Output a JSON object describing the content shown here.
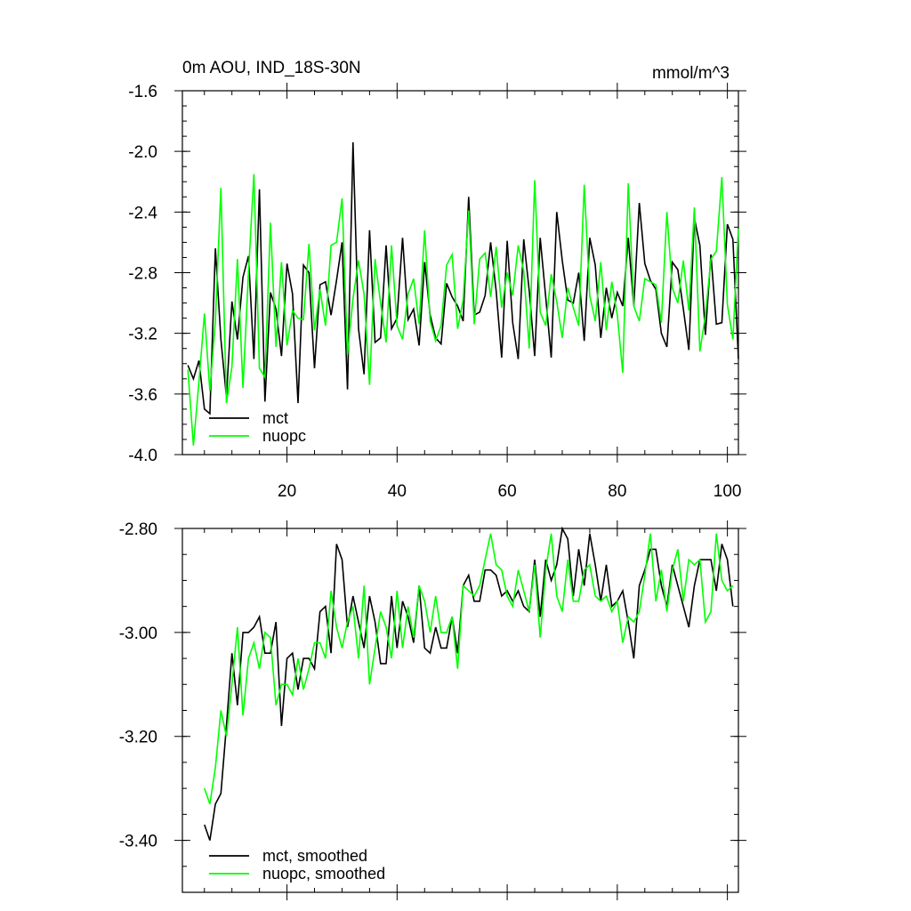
{
  "chart_data": [
    {
      "type": "line",
      "title": "0m AOU, IND_18S-30N",
      "units": "mmol/m^3",
      "xlim": [
        1,
        102
      ],
      "ylim": [
        -4.0,
        -1.6
      ],
      "x_ticks": [
        20,
        40,
        60,
        80,
        100
      ],
      "x_tick_labels": [
        "20",
        "40",
        "60",
        "80",
        "100"
      ],
      "y_ticks": [
        -4.0,
        -3.6,
        -3.2,
        -2.8,
        -2.4,
        -2.0,
        -1.6
      ],
      "y_tick_labels": [
        "-4.0",
        "-3.6",
        "-3.2",
        "-2.8",
        "-2.4",
        "-2.0",
        "-1.6"
      ],
      "series": [
        {
          "name": "mct",
          "color": "#000000",
          "x_start": 2,
          "values": [
            -3.41,
            -3.5,
            -3.38,
            -3.7,
            -3.73,
            -2.64,
            -3.24,
            -3.62,
            -2.99,
            -3.24,
            -2.83,
            -2.69,
            -3.37,
            -2.25,
            -3.65,
            -2.93,
            -3.04,
            -3.35,
            -2.74,
            -2.94,
            -3.66,
            -2.75,
            -2.8,
            -3.43,
            -2.88,
            -2.86,
            -3.08,
            -2.85,
            -2.6,
            -3.57,
            -1.94,
            -3.17,
            -3.47,
            -2.52,
            -3.26,
            -3.23,
            -2.62,
            -3.17,
            -3.1,
            -2.57,
            -3.11,
            -3.04,
            -3.28,
            -2.73,
            -3.08,
            -3.23,
            -3.27,
            -2.87,
            -2.96,
            -3.02,
            -3.12,
            -2.3,
            -3.08,
            -3.06,
            -2.95,
            -2.6,
            -2.92,
            -3.36,
            -2.59,
            -3.13,
            -3.37,
            -2.58,
            -2.92,
            -3.35,
            -2.57,
            -2.96,
            -3.36,
            -2.4,
            -2.72,
            -2.98,
            -3.0,
            -2.8,
            -3.25,
            -2.57,
            -2.75,
            -3.23,
            -2.9,
            -3.1,
            -2.93,
            -3.02,
            -2.57,
            -3.02,
            -2.34,
            -2.74,
            -2.85,
            -2.91,
            -3.2,
            -3.29,
            -2.73,
            -2.78,
            -3.04,
            -3.31,
            -2.44,
            -2.62,
            -3.21,
            -2.68,
            -3.14,
            -3.13,
            -2.48,
            -2.58,
            -3.37
          ]
        },
        {
          "name": "nuopc",
          "color": "#00ff00",
          "x_start": 2,
          "values": [
            -3.44,
            -3.94,
            -3.52,
            -3.07,
            -3.58,
            -3.12,
            -2.24,
            -3.66,
            -3.42,
            -2.71,
            -3.56,
            -2.8,
            -2.15,
            -3.43,
            -3.49,
            -2.47,
            -3.29,
            -2.73,
            -3.28,
            -3.05,
            -3.1,
            -3.11,
            -2.61,
            -3.18,
            -2.91,
            -3.15,
            -2.62,
            -2.6,
            -2.31,
            -3.34,
            -2.97,
            -2.72,
            -2.94,
            -3.54,
            -2.71,
            -3.0,
            -3.26,
            -2.62,
            -3.15,
            -3.24,
            -2.94,
            -2.84,
            -3.14,
            -2.52,
            -3.12,
            -3.25,
            -3.15,
            -2.75,
            -2.68,
            -3.17,
            -2.98,
            -2.39,
            -3.14,
            -2.71,
            -2.67,
            -2.96,
            -2.63,
            -3.03,
            -2.8,
            -2.95,
            -2.62,
            -2.79,
            -3.3,
            -2.19,
            -3.06,
            -3.15,
            -2.81,
            -2.99,
            -3.23,
            -2.9,
            -3.03,
            -3.15,
            -2.22,
            -2.95,
            -3.12,
            -2.73,
            -3.18,
            -2.86,
            -3.08,
            -3.46,
            -2.21,
            -3.02,
            -3.12,
            -2.84,
            -2.86,
            -2.88,
            -3.13,
            -2.4,
            -2.9,
            -3.0,
            -2.72,
            -3.05,
            -2.37,
            -3.32,
            -3.08,
            -2.71,
            -2.66,
            -2.17,
            -3.01,
            -3.24,
            -2.51
          ]
        }
      ]
    },
    {
      "type": "line",
      "title": "",
      "xlim": [
        1,
        102
      ],
      "ylim": [
        -3.5,
        -2.8
      ],
      "x_ticks": [
        20,
        40,
        60,
        80,
        100
      ],
      "y_ticks": [
        -3.4,
        -3.2,
        -3.0,
        -2.8
      ],
      "y_tick_labels": [
        "-3.40",
        "-3.20",
        "-3.00",
        "-2.80"
      ],
      "series": [
        {
          "name": "mct, smoothed",
          "color": "#000000",
          "x_start": 5,
          "values": [
            -3.37,
            -3.4,
            -3.33,
            -3.31,
            -3.18,
            -3.04,
            -3.14,
            -3.0,
            -3.0,
            -2.99,
            -2.97,
            -3.04,
            -3.04,
            -2.98,
            -3.18,
            -3.05,
            -3.04,
            -3.11,
            -3.05,
            -3.05,
            -3.07,
            -2.96,
            -2.95,
            -3.04,
            -2.83,
            -2.86,
            -2.99,
            -2.93,
            -2.98,
            -3.03,
            -2.93,
            -2.98,
            -3.06,
            -3.06,
            -2.93,
            -3.03,
            -2.94,
            -2.97,
            -3.02,
            -2.91,
            -3.03,
            -3.04,
            -2.99,
            -3.03,
            -3.03,
            -2.97,
            -3.04,
            -2.91,
            -2.89,
            -2.94,
            -2.94,
            -2.88,
            -2.88,
            -2.89,
            -2.93,
            -2.92,
            -2.94,
            -2.92,
            -2.95,
            -2.96,
            -2.86,
            -2.97,
            -2.86,
            -2.9,
            -2.87,
            -2.8,
            -2.82,
            -2.93,
            -2.84,
            -2.91,
            -2.81,
            -2.87,
            -2.94,
            -2.87,
            -2.95,
            -2.94,
            -2.92,
            -2.98,
            -3.05,
            -2.91,
            -2.88,
            -2.84,
            -2.84,
            -2.91,
            -2.95,
            -2.87,
            -2.91,
            -2.95,
            -2.99,
            -2.91,
            -2.86,
            -2.86,
            -2.86,
            -2.92,
            -2.83,
            -2.86,
            -2.95
          ]
        },
        {
          "name": "nuopc, smoothed",
          "color": "#00ff00",
          "x_start": 5,
          "values": [
            -3.3,
            -3.33,
            -3.26,
            -3.15,
            -3.2,
            -3.1,
            -2.99,
            -3.16,
            -3.05,
            -3.02,
            -3.07,
            -3.0,
            -3.01,
            -3.14,
            -3.1,
            -3.1,
            -3.12,
            -3.05,
            -3.11,
            -3.07,
            -3.02,
            -3.02,
            -3.05,
            -2.92,
            -2.99,
            -3.03,
            -2.98,
            -2.95,
            -3.05,
            -2.91,
            -3.1,
            -3.03,
            -2.96,
            -2.99,
            -3.05,
            -2.92,
            -3.03,
            -2.95,
            -3.01,
            -2.91,
            -2.94,
            -3.0,
            -2.93,
            -3.0,
            -3.0,
            -2.97,
            -3.07,
            -2.91,
            -2.92,
            -2.93,
            -2.91,
            -2.86,
            -2.81,
            -2.87,
            -2.88,
            -2.93,
            -2.95,
            -2.88,
            -2.92,
            -2.96,
            -2.87,
            -3.01,
            -2.88,
            -2.81,
            -2.93,
            -2.96,
            -2.86,
            -2.94,
            -2.94,
            -2.88,
            -2.87,
            -2.93,
            -2.94,
            -2.93,
            -2.96,
            -2.94,
            -3.02,
            -2.97,
            -2.98,
            -2.96,
            -2.89,
            -2.81,
            -2.94,
            -2.88,
            -2.96,
            -2.88,
            -2.84,
            -2.94,
            -2.86,
            -2.87,
            -2.86,
            -2.98,
            -2.96,
            -2.81,
            -2.9,
            -2.92,
            -2.91
          ]
        }
      ]
    }
  ]
}
